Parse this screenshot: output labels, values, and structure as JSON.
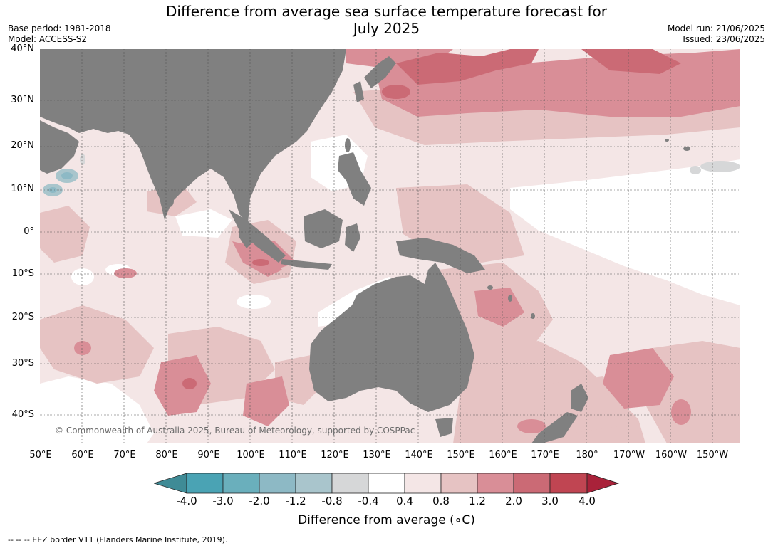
{
  "header": {
    "title_line1": "Difference from average sea surface temperature forecast for",
    "title_line2": "July 2025",
    "base_period": "Base period: 1981-2018",
    "model": "Model: ACCESS-S2",
    "model_run": "Model run: 21/06/2025",
    "issued": "Issued: 23/06/2025"
  },
  "map": {
    "lat_labels": [
      "40°N",
      "30°N",
      "20°N",
      "10°N",
      "0°",
      "10°S",
      "20°S",
      "30°S",
      "40°S"
    ],
    "lon_labels": [
      "50°E",
      "60°E",
      "70°E",
      "80°E",
      "90°E",
      "100°E",
      "110°E",
      "120°E",
      "130°E",
      "140°E",
      "150°E",
      "160°E",
      "170°E",
      "180°",
      "170°W",
      "160°W",
      "150°W"
    ],
    "copyright": "© Commonwealth of Australia 2025, Bureau of Meteorology, supported by COSPPac",
    "colors": {
      "land": "#808080",
      "ocean_background": "#f4e6e6"
    }
  },
  "colorbar": {
    "ticks": [
      "-4.0",
      "-3.0",
      "-2.0",
      "-1.2",
      "-0.8",
      "-0.4",
      "0.4",
      "0.8",
      "1.2",
      "2.0",
      "3.0",
      "4.0"
    ],
    "colors": [
      "#3f8b96",
      "#4aa3b4",
      "#6aafbc",
      "#8db9c5",
      "#a9c5cc",
      "#d6d7d8",
      "#ffffff",
      "#f4e6e6",
      "#e6c3c3",
      "#d98e97",
      "#cb6a75",
      "#c04552",
      "#a9223a"
    ],
    "label": "Difference from average (∘C)"
  },
  "footer": {
    "text": "--  --  -- EEZ border V11 (Flanders Marine Institute, 2019)."
  }
}
